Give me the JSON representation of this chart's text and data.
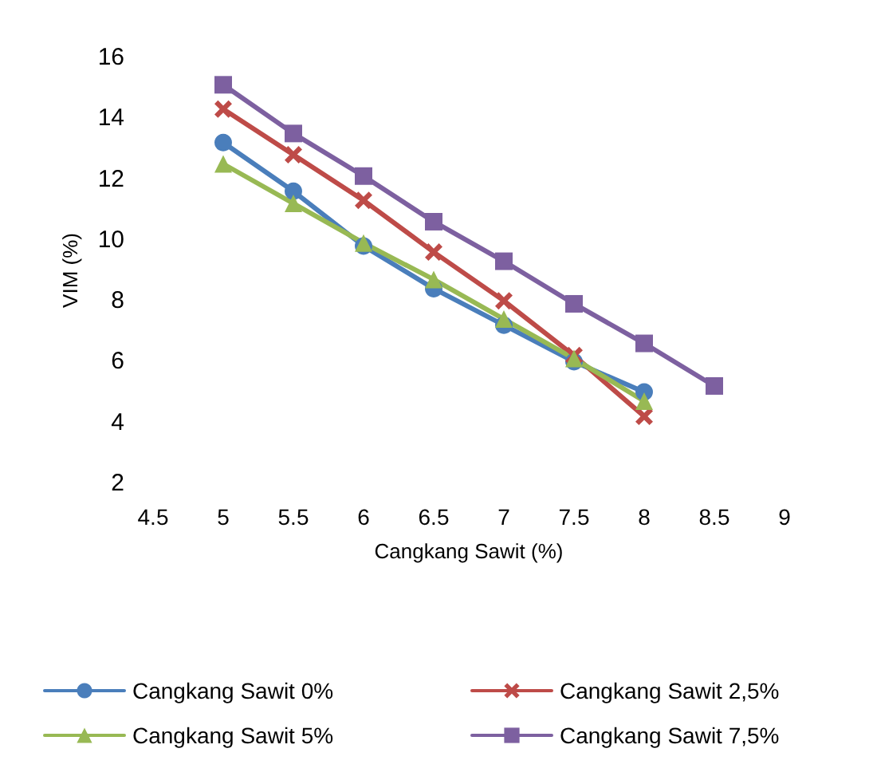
{
  "chart_data": {
    "type": "line",
    "xlabel": "Cangkang Sawit (%)",
    "ylabel": "VIM (%)",
    "xlim": [
      4.5,
      9
    ],
    "xticks": [
      4.5,
      5,
      5.5,
      6,
      6.5,
      7,
      7.5,
      8,
      8.5,
      9
    ],
    "ylim": [
      2,
      16
    ],
    "yticks": [
      2,
      4,
      6,
      8,
      10,
      12,
      14,
      16
    ],
    "grid": false,
    "legend": "bottom",
    "line_style": "solid",
    "series": [
      {
        "name": "Cangkang Sawit 0%",
        "color": "#4a7ebb",
        "marker": "circle",
        "x": [
          5,
          5.5,
          6,
          6.5,
          7,
          7.5,
          8
        ],
        "values": [
          13.2,
          11.6,
          9.8,
          8.4,
          7.2,
          6.0,
          5.0
        ]
      },
      {
        "name": "Cangkang Sawit 2,5%",
        "color": "#be4b48",
        "marker": "cross",
        "x": [
          5,
          5.5,
          6,
          6.5,
          7,
          7.5,
          8
        ],
        "values": [
          14.3,
          12.8,
          11.3,
          9.6,
          8.0,
          6.2,
          4.2
        ]
      },
      {
        "name": "Cangkang Sawit 5%",
        "color": "#98b954",
        "marker": "triangle",
        "x": [
          5,
          5.5,
          6,
          6.5,
          7,
          7.5,
          8
        ],
        "values": [
          12.5,
          11.2,
          9.9,
          8.7,
          7.4,
          6.1,
          4.7
        ]
      },
      {
        "name": "Cangkang Sawit 7,5%",
        "color": "#7d60a0",
        "marker": "square",
        "x": [
          5,
          5.5,
          6,
          6.5,
          7,
          7.5,
          8,
          8.5
        ],
        "values": [
          15.1,
          13.5,
          12.1,
          10.6,
          9.3,
          7.9,
          6.6,
          5.2
        ]
      }
    ]
  }
}
